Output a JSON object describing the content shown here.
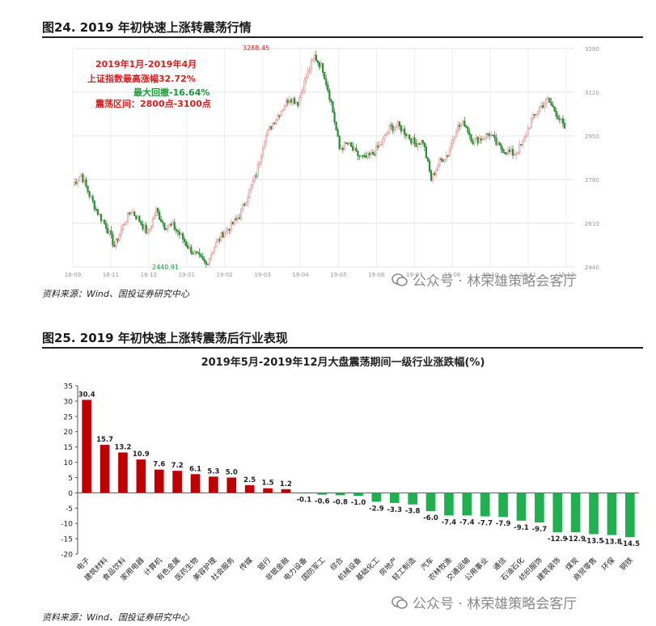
{
  "figure24": {
    "title": "图24. 2019 年初快速上涨转震荡行情",
    "source": "资料来源：Wind、国投证券研究中心",
    "annotations": {
      "line1": "2019年1月-2019年4月",
      "line2": "上证指数最高涨幅32.72%",
      "line3": "最大回撤-16.64%",
      "line4": "震荡区间：2800点-3100点",
      "high_label": "3288.45",
      "low_label": "2440.91"
    },
    "colors": {
      "up": "#e8a0a0",
      "down": "#2f8f3a",
      "red_text": "#d62020",
      "green_text": "#1a9a3a"
    }
  },
  "figure25": {
    "title": "图25. 2019 年初快速上涨转震荡后行业表现",
    "source": "资料来源：Wind、国投证券研究中心",
    "colors": {
      "positive": "#c00000",
      "negative": "#20b050"
    }
  },
  "watermark": "公众号 · 林荣雄策略会客厅",
  "chart_data": [
    {
      "type": "candlestick",
      "x_ticks": [
        "18-09",
        "18-11",
        "18-12",
        "19-01",
        "19-02",
        "19-03",
        "19-04",
        "19-05",
        "19-06",
        "19-07",
        "19-08",
        "19-10",
        "19-11",
        "19-12"
      ],
      "y_ticks": [
        2440,
        2610,
        2780,
        2950,
        3120,
        3290
      ],
      "ylim": [
        2440,
        3290
      ],
      "grid": true,
      "series": [
        {
          "x": "18-09",
          "y": 2760
        },
        {
          "x": "18-09",
          "y": 2800
        },
        {
          "x": "18-09",
          "y": 2720
        },
        {
          "x": "18-10",
          "y": 2650
        },
        {
          "x": "18-10",
          "y": 2600
        },
        {
          "x": "18-10",
          "y": 2520
        },
        {
          "x": "18-10",
          "y": 2600
        },
        {
          "x": "18-10",
          "y": 2660
        },
        {
          "x": "18-11",
          "y": 2620
        },
        {
          "x": "18-11",
          "y": 2570
        },
        {
          "x": "18-11",
          "y": 2660
        },
        {
          "x": "18-11",
          "y": 2600
        },
        {
          "x": "18-12",
          "y": 2600
        },
        {
          "x": "18-12",
          "y": 2560
        },
        {
          "x": "18-12",
          "y": 2510
        },
        {
          "x": "18-12",
          "y": 2480
        },
        {
          "x": "19-01",
          "y": 2450
        },
        {
          "x": "19-01",
          "y": 2520
        },
        {
          "x": "19-01",
          "y": 2570
        },
        {
          "x": "19-01",
          "y": 2600
        },
        {
          "x": "19-02",
          "y": 2640
        },
        {
          "x": "19-02",
          "y": 2720
        },
        {
          "x": "19-02",
          "y": 2800
        },
        {
          "x": "19-02",
          "y": 2940
        },
        {
          "x": "19-03",
          "y": 3000
        },
        {
          "x": "19-03",
          "y": 3050
        },
        {
          "x": "19-03",
          "y": 3100
        },
        {
          "x": "19-03",
          "y": 3080
        },
        {
          "x": "19-04",
          "y": 3180
        },
        {
          "x": "19-04",
          "y": 3260
        },
        {
          "x": "19-04",
          "y": 3210
        },
        {
          "x": "19-04",
          "y": 3080
        },
        {
          "x": "19-05",
          "y": 2900
        },
        {
          "x": "19-05",
          "y": 2920
        },
        {
          "x": "19-05",
          "y": 2880
        },
        {
          "x": "19-05",
          "y": 2860
        },
        {
          "x": "19-06",
          "y": 2880
        },
        {
          "x": "19-06",
          "y": 2920
        },
        {
          "x": "19-06",
          "y": 2980
        },
        {
          "x": "19-06",
          "y": 2990
        },
        {
          "x": "19-07",
          "y": 2960
        },
        {
          "x": "19-07",
          "y": 2920
        },
        {
          "x": "19-07",
          "y": 2930
        },
        {
          "x": "19-08",
          "y": 2780
        },
        {
          "x": "19-08",
          "y": 2850
        },
        {
          "x": "19-08",
          "y": 2880
        },
        {
          "x": "19-09",
          "y": 2980
        },
        {
          "x": "19-09",
          "y": 3000
        },
        {
          "x": "19-09",
          "y": 2930
        },
        {
          "x": "19-10",
          "y": 2940
        },
        {
          "x": "19-10",
          "y": 2960
        },
        {
          "x": "19-11",
          "y": 2910
        },
        {
          "x": "19-11",
          "y": 2890
        },
        {
          "x": "19-11",
          "y": 2880
        },
        {
          "x": "19-12",
          "y": 2920
        },
        {
          "x": "19-12",
          "y": 3010
        },
        {
          "x": "19-12",
          "y": 3060
        },
        {
          "x": "19-12",
          "y": 3090
        },
        {
          "x": "19-12",
          "y": 3040
        },
        {
          "x": "19-12",
          "y": 2980
        }
      ]
    },
    {
      "type": "bar",
      "title": "2019年5月-2019年12月大盘震荡期间一级行业涨跌幅(%)",
      "categories": [
        "电子",
        "建筑材料",
        "食品饮料",
        "家用电器",
        "计算机",
        "有色金属",
        "医药生物",
        "美容护理",
        "社会服务",
        "传媒",
        "银行",
        "非银金融",
        "电力设备",
        "国防军工",
        "综合",
        "机械设备",
        "基础化工",
        "房地产",
        "轻工制造",
        "汽车",
        "农林牧渔",
        "交通运输",
        "公用事业",
        "通信",
        "石油石化",
        "纺织服饰",
        "建筑装饰",
        "煤炭",
        "商贸零售",
        "环保",
        "钢铁"
      ],
      "values": [
        30.4,
        15.7,
        13.2,
        10.9,
        7.6,
        7.2,
        6.1,
        5.3,
        5.0,
        2.5,
        1.5,
        1.2,
        -0.1,
        -0.6,
        -0.8,
        -1.0,
        -2.9,
        -3.3,
        -3.8,
        -6.0,
        -7.4,
        -7.4,
        -7.7,
        -7.9,
        -9.1,
        -9.7,
        -12.9,
        -12.9,
        -13.5,
        -13.8,
        -14.5
      ],
      "value_labels": [
        "30.4",
        "15.7",
        "13.2",
        "10.9",
        "7.6",
        "7.2",
        "6.1",
        "5.3",
        "5.0",
        "2.5",
        "1.5",
        "1.2",
        "-0.1",
        "-0.6",
        "-0.8",
        "-1.0",
        "-2.9",
        "-3.3",
        "-3.8",
        "-6.0",
        "-7.4",
        "-7.4",
        "-7.7",
        "-7.9",
        "-9.1",
        "-9.7",
        "-12.9",
        "-12.9",
        "-13.5",
        "-13.8",
        "-14.5"
      ],
      "ylim": [
        -20,
        35
      ],
      "y_ticks": [
        35,
        30,
        25,
        20,
        15,
        10,
        5,
        0,
        -5,
        -10,
        -15,
        -20
      ],
      "grid": false
    }
  ]
}
